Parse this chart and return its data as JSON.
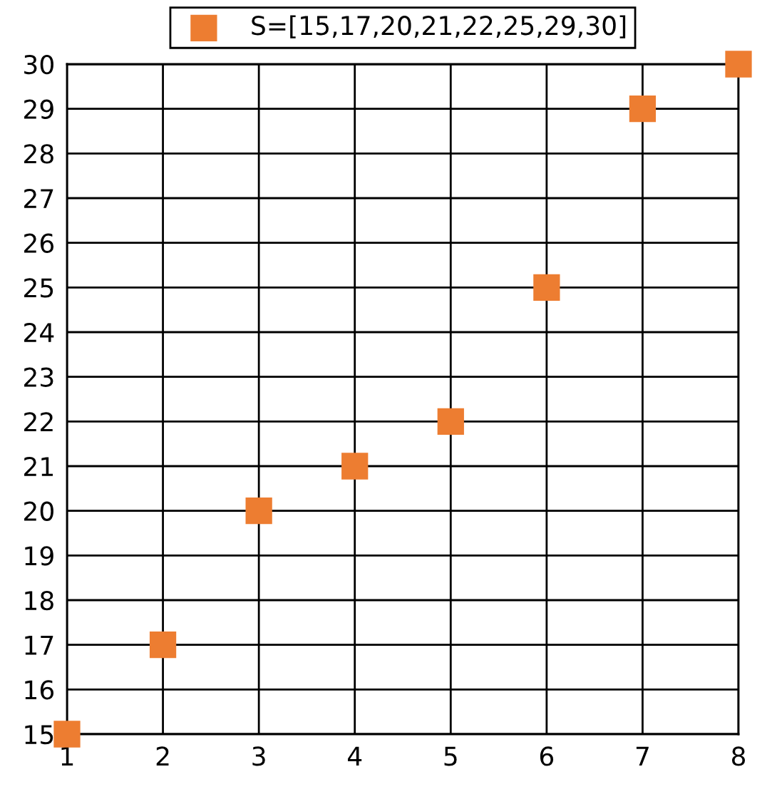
{
  "chart_data": {
    "type": "scatter",
    "x": [
      1,
      2,
      3,
      4,
      5,
      6,
      7,
      8
    ],
    "series": [
      {
        "name": "S=[15,17,20,21,22,25,29,30]",
        "color": "#ed7d31",
        "values": [
          15,
          17,
          20,
          21,
          22,
          25,
          29,
          30
        ]
      }
    ],
    "xlim": [
      1,
      8
    ],
    "xticks": [
      1,
      2,
      3,
      4,
      5,
      6,
      7,
      8
    ],
    "ylim": [
      15,
      30
    ],
    "yticks": [
      15,
      16,
      17,
      18,
      19,
      20,
      21,
      22,
      23,
      24,
      25,
      26,
      27,
      28,
      29,
      30
    ],
    "grid": true,
    "legend": "top",
    "marker": "square"
  }
}
